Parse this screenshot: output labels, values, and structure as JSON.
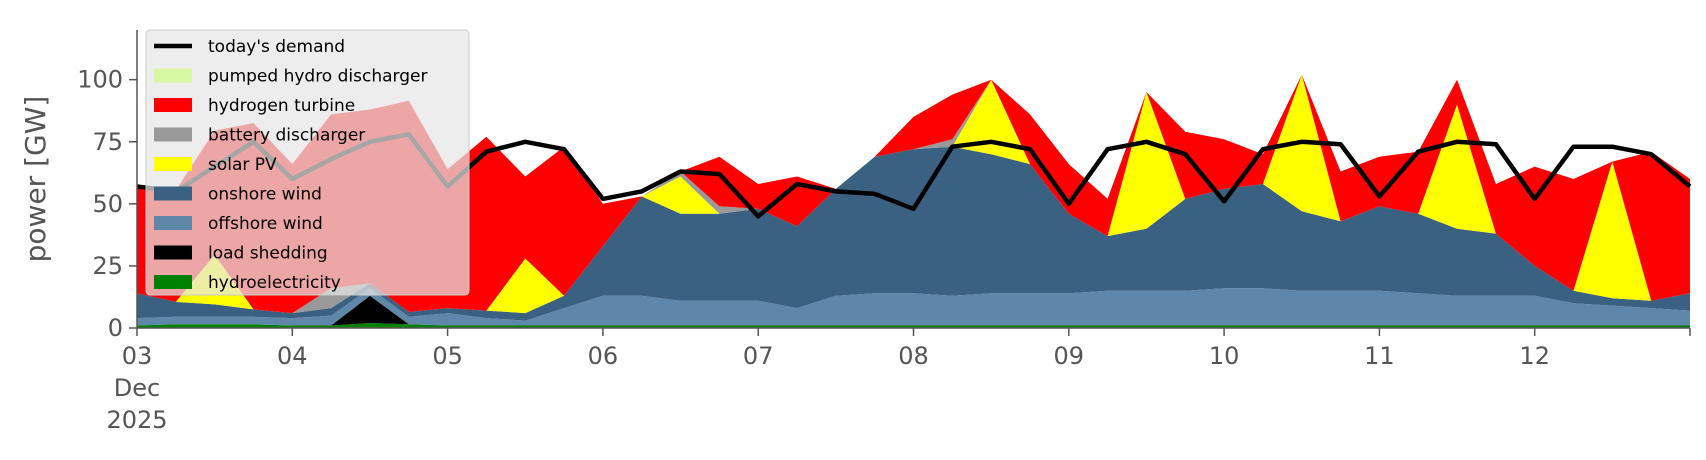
{
  "chart_data": {
    "type": "area",
    "title": "",
    "xlabel": "",
    "ylabel": "power [GW]",
    "ylim": [
      0,
      120
    ],
    "yticks": [
      0,
      25,
      50,
      75,
      100
    ],
    "xlim": [
      0,
      10
    ],
    "xtick_values": [
      0,
      1,
      2,
      3,
      4,
      5,
      6,
      7,
      8,
      9
    ],
    "xtick_labels": [
      "03",
      "04",
      "05",
      "06",
      "07",
      "08",
      "09",
      "10",
      "11",
      "12"
    ],
    "xtick_sublabels": [
      "Dec",
      "2025"
    ],
    "x_unit": "days since 2025-12-03 00:00",
    "grid": false,
    "legend_position": "top-left",
    "x": [
      0,
      0.25,
      0.5,
      0.75,
      1,
      1.25,
      1.5,
      1.75,
      2,
      2.25,
      2.5,
      2.75,
      3,
      3.25,
      3.5,
      3.75,
      4,
      4.25,
      4.5,
      4.75,
      5,
      5.25,
      5.5,
      5.75,
      6,
      6.25,
      6.5,
      6.75,
      7,
      7.25,
      7.5,
      7.75,
      8,
      8.25,
      8.5,
      8.75,
      9,
      9.25,
      9.5,
      9.75,
      10
    ],
    "series": [
      {
        "name": "hydroelectricity",
        "color": "#008000",
        "values": [
          1,
          1.5,
          1.5,
          1.5,
          1,
          1,
          2,
          1.5,
          1,
          1,
          1,
          1,
          1,
          1,
          1,
          1,
          1,
          1,
          1,
          1,
          1,
          1,
          1,
          1,
          1,
          1,
          1,
          1,
          1,
          1,
          1,
          1,
          1,
          1,
          1,
          1,
          1,
          1,
          1,
          1,
          1
        ]
      },
      {
        "name": "load shedding",
        "color": "#000000",
        "values": [
          0,
          0,
          0,
          0,
          0,
          0,
          11,
          0,
          0,
          0,
          0,
          0,
          0,
          0,
          0,
          0,
          0,
          0,
          0,
          0,
          0,
          0,
          0,
          0,
          0,
          0,
          0,
          0,
          0,
          0,
          0,
          0,
          0,
          0,
          0,
          0,
          0,
          0,
          0,
          0,
          0
        ]
      },
      {
        "name": "offshore wind",
        "color": "#5e87a9",
        "values": [
          3,
          3,
          3,
          3,
          3,
          4,
          3,
          3,
          5,
          3,
          2,
          7,
          12,
          12,
          10,
          10,
          10,
          7,
          12,
          13,
          13,
          12,
          13,
          13,
          13,
          14,
          14,
          14,
          15,
          15,
          14,
          14,
          14,
          13,
          12,
          12,
          12,
          9,
          8,
          7,
          6
        ]
      },
      {
        "name": "onshore wind",
        "color": "#3b6182",
        "values": [
          10,
          6,
          5,
          3,
          2,
          3,
          2,
          2,
          2,
          3,
          3,
          5,
          20,
          40,
          35,
          35,
          37,
          33,
          43,
          55,
          58,
          60,
          56,
          52,
          32,
          22,
          25,
          37,
          40,
          42,
          32,
          28,
          34,
          32,
          27,
          25,
          12,
          5,
          3,
          3,
          7
        ]
      },
      {
        "name": "solar PV",
        "color": "#ffff00",
        "values": [
          0,
          0,
          20,
          0,
          0,
          0,
          0,
          0,
          0,
          0,
          22,
          0,
          0,
          0,
          15,
          0,
          0,
          0,
          0,
          0,
          0,
          0,
          30,
          0,
          0,
          0,
          55,
          0,
          0,
          0,
          55,
          0,
          0,
          0,
          50,
          0,
          0,
          0,
          55,
          0,
          0
        ]
      },
      {
        "name": "battery discharger",
        "color": "#999999",
        "values": [
          0,
          0,
          0,
          0,
          0,
          8,
          0,
          0,
          0,
          0,
          0,
          0,
          0,
          0,
          2,
          3,
          0,
          0,
          0,
          0,
          0,
          3,
          0,
          0,
          0,
          0,
          0,
          0,
          0,
          0,
          0,
          0,
          0,
          0,
          0,
          0,
          0,
          0,
          0,
          0,
          0
        ]
      },
      {
        "name": "hydrogen turbine",
        "color": "#ff0000",
        "values": [
          42,
          45,
          50,
          75,
          60,
          70,
          70,
          85,
          56,
          70,
          33,
          60,
          17,
          0,
          0,
          20,
          10,
          20,
          0,
          0,
          13,
          18,
          0,
          20,
          20,
          15,
          0,
          27,
          20,
          12,
          0,
          20,
          20,
          25,
          10,
          20,
          40,
          45,
          0,
          60,
          46
        ]
      },
      {
        "name": "pumped hydro discharger",
        "color": "#d7f7a0",
        "values": [
          0,
          0,
          0,
          0,
          0,
          0,
          0,
          0,
          0,
          0,
          0,
          0,
          0,
          0,
          0,
          0,
          0,
          0,
          0,
          0,
          0,
          0,
          0,
          0,
          0,
          0,
          0,
          0,
          0,
          0,
          0,
          0,
          0,
          0,
          0,
          0,
          0,
          0,
          0,
          0,
          0
        ]
      }
    ],
    "demand": {
      "name": "today's demand",
      "color": "#000000",
      "values": [
        57,
        55,
        65,
        75,
        60,
        68,
        75,
        78,
        57,
        71,
        75,
        72,
        52,
        55,
        63,
        62,
        45,
        58,
        55,
        54,
        48,
        73,
        75,
        72,
        50,
        72,
        75,
        70,
        51,
        72,
        75,
        74,
        53,
        71,
        75,
        74,
        52,
        73,
        73,
        70,
        57
      ]
    },
    "legend_order": [
      "today's demand",
      "pumped hydro discharger",
      "hydrogen turbine",
      "battery discharger",
      "solar PV",
      "onshore wind",
      "offshore wind",
      "load shedding",
      "hydroelectricity"
    ]
  }
}
